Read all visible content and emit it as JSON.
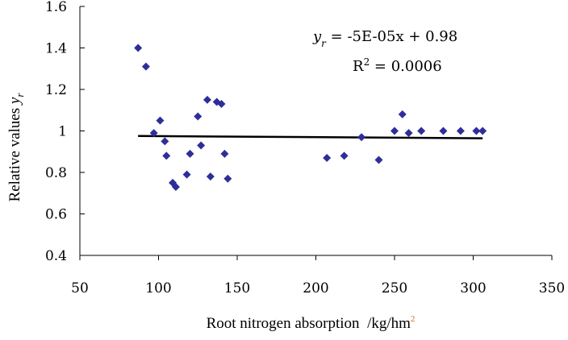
{
  "chart_data": {
    "type": "scatter",
    "title": "",
    "xlabel": "Root nitrogen absorption",
    "xlabel_unit_prefix": "/kg/hm",
    "xlabel_unit_superscript": "2",
    "ylabel": "Relative values",
    "ylabel_var": "y",
    "ylabel_sub": "r",
    "xlim": [
      50,
      350
    ],
    "ylim": [
      0.4,
      1.6
    ],
    "xticks": [
      50,
      100,
      150,
      200,
      250,
      300,
      350
    ],
    "xtick_labels": [
      "50",
      "100",
      "150",
      "200",
      "250",
      "300",
      "350"
    ],
    "yticks": [
      0.4,
      0.6,
      0.8,
      1.0,
      1.2,
      1.4,
      1.6
    ],
    "ytick_labels": [
      "0.4",
      "0.6",
      "0.8",
      "1",
      "1.2",
      "1.4",
      "1.6"
    ],
    "grid": false,
    "marker_color": "#2e2e9a",
    "trend_color": "#000000",
    "points": [
      {
        "x": 87,
        "y": 1.4
      },
      {
        "x": 92,
        "y": 1.31
      },
      {
        "x": 97,
        "y": 0.99
      },
      {
        "x": 101,
        "y": 1.05
      },
      {
        "x": 104,
        "y": 0.95
      },
      {
        "x": 105,
        "y": 0.88
      },
      {
        "x": 109,
        "y": 0.75
      },
      {
        "x": 111,
        "y": 0.73
      },
      {
        "x": 118,
        "y": 0.79
      },
      {
        "x": 120,
        "y": 0.89
      },
      {
        "x": 125,
        "y": 1.07
      },
      {
        "x": 127,
        "y": 0.93
      },
      {
        "x": 131,
        "y": 1.15
      },
      {
        "x": 133,
        "y": 0.78
      },
      {
        "x": 137,
        "y": 1.14
      },
      {
        "x": 140,
        "y": 1.13
      },
      {
        "x": 142,
        "y": 0.89
      },
      {
        "x": 144,
        "y": 0.77
      },
      {
        "x": 207,
        "y": 0.87
      },
      {
        "x": 218,
        "y": 0.88
      },
      {
        "x": 229,
        "y": 0.97
      },
      {
        "x": 240,
        "y": 0.86
      },
      {
        "x": 250,
        "y": 1.0
      },
      {
        "x": 255,
        "y": 1.08
      },
      {
        "x": 259,
        "y": 0.99
      },
      {
        "x": 267,
        "y": 1.0
      },
      {
        "x": 281,
        "y": 1.0
      },
      {
        "x": 292,
        "y": 1.0
      },
      {
        "x": 302,
        "y": 1.0
      },
      {
        "x": 306,
        "y": 1.0
      }
    ],
    "trendline": {
      "x": [
        87,
        306
      ],
      "slope": -5e-05,
      "intercept": 0.98
    },
    "equation": {
      "var": "y",
      "sub": "r",
      "rhs": " = -5E-05x + 0.98",
      "r2_label": "R",
      "r2_sup": "2",
      "r2_rhs": " = 0.0006"
    }
  }
}
